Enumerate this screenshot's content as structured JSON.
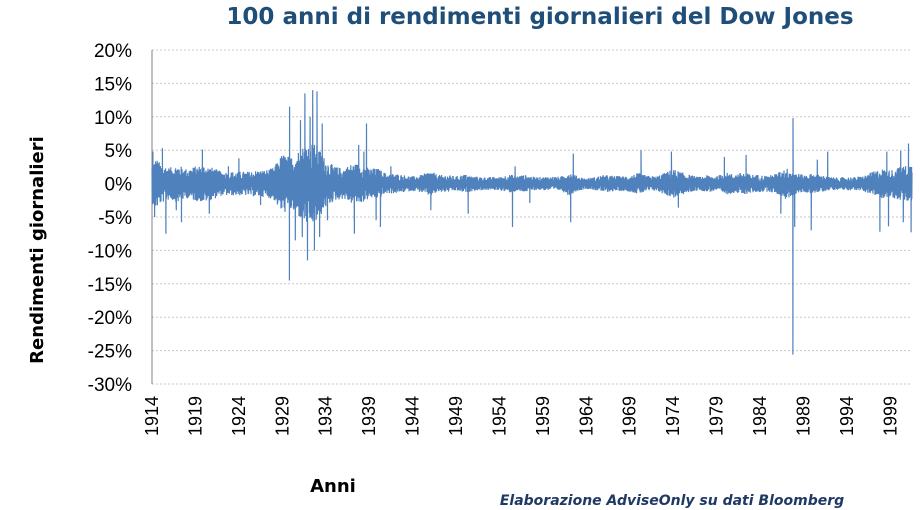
{
  "chart_data": {
    "type": "line",
    "title": "100 anni di rendimenti giornalieri del Dow Jones",
    "xlabel": "Anni",
    "ylabel": "Rendimenti giornalieri",
    "source_note": "Elaborazione AdviseOnly su dati Bloomberg",
    "y_unit": "%",
    "ylim": [
      -30,
      20
    ],
    "yticks": [
      20,
      15,
      10,
      5,
      0,
      -5,
      -10,
      -15,
      -20,
      -25,
      -30
    ],
    "ytick_labels": [
      "20%",
      "15%",
      "10%",
      "5%",
      "0%",
      "-5%",
      "-10%",
      "-15%",
      "-20%",
      "-25%",
      "-30%"
    ],
    "xlim": [
      1914,
      2001.5
    ],
    "xticks": [
      1914,
      1919,
      1924,
      1929,
      1934,
      1939,
      1944,
      1949,
      1954,
      1959,
      1964,
      1969,
      1974,
      1979,
      1984,
      1989,
      1994,
      1999
    ],
    "xtick_labels": [
      "1914",
      "1919",
      "1924",
      "1929",
      "1934",
      "1939",
      "1944",
      "1949",
      "1954",
      "1959",
      "1964",
      "1969",
      "1974",
      "1979",
      "1984",
      "1989",
      "1994",
      "1999"
    ],
    "grid": true,
    "series": [
      {
        "color": "#4f81bd",
        "volatility_envelope": [
          [
            1914.0,
            3.0
          ],
          [
            1914.5,
            3.8
          ],
          [
            1915.0,
            3.0
          ],
          [
            1916.0,
            2.4
          ],
          [
            1917.0,
            2.8
          ],
          [
            1918.0,
            2.2
          ],
          [
            1919.0,
            2.6
          ],
          [
            1920.0,
            2.8
          ],
          [
            1921.0,
            2.4
          ],
          [
            1922.0,
            1.8
          ],
          [
            1923.0,
            1.8
          ],
          [
            1924.0,
            1.8
          ],
          [
            1925.0,
            1.8
          ],
          [
            1926.0,
            2.0
          ],
          [
            1927.0,
            2.0
          ],
          [
            1928.0,
            2.4
          ],
          [
            1929.0,
            4.5
          ],
          [
            1930.0,
            4.0
          ],
          [
            1931.0,
            5.2
          ],
          [
            1932.0,
            6.5
          ],
          [
            1933.0,
            5.8
          ],
          [
            1934.0,
            3.6
          ],
          [
            1935.0,
            2.6
          ],
          [
            1936.0,
            2.3
          ],
          [
            1937.0,
            3.0
          ],
          [
            1938.0,
            3.0
          ],
          [
            1939.0,
            2.3
          ],
          [
            1940.0,
            2.3
          ],
          [
            1941.0,
            1.5
          ],
          [
            1942.0,
            1.5
          ],
          [
            1943.0,
            1.3
          ],
          [
            1944.0,
            1.1
          ],
          [
            1945.0,
            1.3
          ],
          [
            1946.0,
            1.9
          ],
          [
            1947.0,
            1.3
          ],
          [
            1948.0,
            1.3
          ],
          [
            1949.0,
            1.1
          ],
          [
            1950.0,
            1.4
          ],
          [
            1951.0,
            1.1
          ],
          [
            1952.0,
            1.0
          ],
          [
            1953.0,
            1.0
          ],
          [
            1954.0,
            1.0
          ],
          [
            1955.0,
            1.4
          ],
          [
            1956.0,
            1.2
          ],
          [
            1957.0,
            1.3
          ],
          [
            1958.0,
            1.0
          ],
          [
            1959.0,
            1.0
          ],
          [
            1960.0,
            1.1
          ],
          [
            1961.0,
            1.0
          ],
          [
            1962.0,
            1.8
          ],
          [
            1963.0,
            1.1
          ],
          [
            1964.0,
            0.8
          ],
          [
            1965.0,
            1.0
          ],
          [
            1966.0,
            1.3
          ],
          [
            1967.0,
            1.2
          ],
          [
            1968.0,
            1.1
          ],
          [
            1969.0,
            1.2
          ],
          [
            1970.0,
            1.6
          ],
          [
            1971.0,
            1.2
          ],
          [
            1972.0,
            1.1
          ],
          [
            1973.0,
            1.6
          ],
          [
            1974.0,
            2.2
          ],
          [
            1975.0,
            1.7
          ],
          [
            1976.0,
            1.3
          ],
          [
            1977.0,
            1.0
          ],
          [
            1978.0,
            1.3
          ],
          [
            1979.0,
            1.1
          ],
          [
            1980.0,
            1.7
          ],
          [
            1981.0,
            1.4
          ],
          [
            1982.0,
            1.7
          ],
          [
            1983.0,
            1.4
          ],
          [
            1984.0,
            1.3
          ],
          [
            1985.0,
            1.2
          ],
          [
            1986.0,
            1.6
          ],
          [
            1987.0,
            2.4
          ],
          [
            1988.0,
            1.7
          ],
          [
            1989.0,
            1.3
          ],
          [
            1990.0,
            1.5
          ],
          [
            1991.0,
            1.3
          ],
          [
            1992.0,
            1.0
          ],
          [
            1993.0,
            0.9
          ],
          [
            1994.0,
            1.0
          ],
          [
            1995.0,
            1.0
          ],
          [
            1996.0,
            1.2
          ],
          [
            1997.0,
            1.8
          ],
          [
            1998.0,
            2.2
          ],
          [
            1999.0,
            2.0
          ],
          [
            2000.0,
            2.5
          ],
          [
            2001.0,
            2.8
          ],
          [
            2001.5,
            3.0
          ]
        ],
        "notable_points": [
          [
            1914.1,
            4.8
          ],
          [
            1914.3,
            -5.0
          ],
          [
            1915.2,
            5.3
          ],
          [
            1915.6,
            -7.5
          ],
          [
            1916.8,
            -4.0
          ],
          [
            1917.4,
            -5.8
          ],
          [
            1919.8,
            5.1
          ],
          [
            1920.6,
            -4.5
          ],
          [
            1922.8,
            2.6
          ],
          [
            1924.0,
            3.8
          ],
          [
            1926.5,
            -3.2
          ],
          [
            1928.9,
            2.8
          ],
          [
            1929.3,
            -3.5
          ],
          [
            1929.82,
            -14.5
          ],
          [
            1929.84,
            11.5
          ],
          [
            1930.5,
            -8.5
          ],
          [
            1931.1,
            9.5
          ],
          [
            1931.3,
            -8.0
          ],
          [
            1931.6,
            13.5
          ],
          [
            1931.9,
            -11.5
          ],
          [
            1932.2,
            10.0
          ],
          [
            1932.5,
            14.0
          ],
          [
            1932.7,
            -10.0
          ],
          [
            1933.0,
            13.8
          ],
          [
            1933.3,
            -8.0
          ],
          [
            1933.6,
            9.0
          ],
          [
            1934.2,
            -5.5
          ],
          [
            1937.3,
            -7.5
          ],
          [
            1937.8,
            5.8
          ],
          [
            1938.4,
            4.8
          ],
          [
            1938.7,
            9.0
          ],
          [
            1939.8,
            -5.5
          ],
          [
            1940.3,
            -6.5
          ],
          [
            1941.5,
            2.6
          ],
          [
            1946.1,
            -4.0
          ],
          [
            1950.4,
            -4.5
          ],
          [
            1955.5,
            -6.5
          ],
          [
            1955.8,
            2.6
          ],
          [
            1957.5,
            -2.9
          ],
          [
            1962.2,
            -5.8
          ],
          [
            1962.5,
            4.5
          ],
          [
            1970.3,
            5.0
          ],
          [
            1973.8,
            4.8
          ],
          [
            1974.6,
            -3.6
          ],
          [
            1979.9,
            4.0
          ],
          [
            1982.4,
            4.3
          ],
          [
            1986.4,
            -4.5
          ],
          [
            1987.79,
            -25.6
          ],
          [
            1987.8,
            9.8
          ],
          [
            1988.0,
            -6.5
          ],
          [
            1989.9,
            -7.0
          ],
          [
            1990.6,
            3.6
          ],
          [
            1991.8,
            4.8
          ],
          [
            1997.8,
            -7.2
          ],
          [
            1998.6,
            4.8
          ],
          [
            1998.8,
            -6.4
          ],
          [
            2000.2,
            4.9
          ],
          [
            2000.5,
            -5.8
          ],
          [
            2001.1,
            6.0
          ],
          [
            2001.4,
            -7.3
          ]
        ]
      }
    ]
  }
}
